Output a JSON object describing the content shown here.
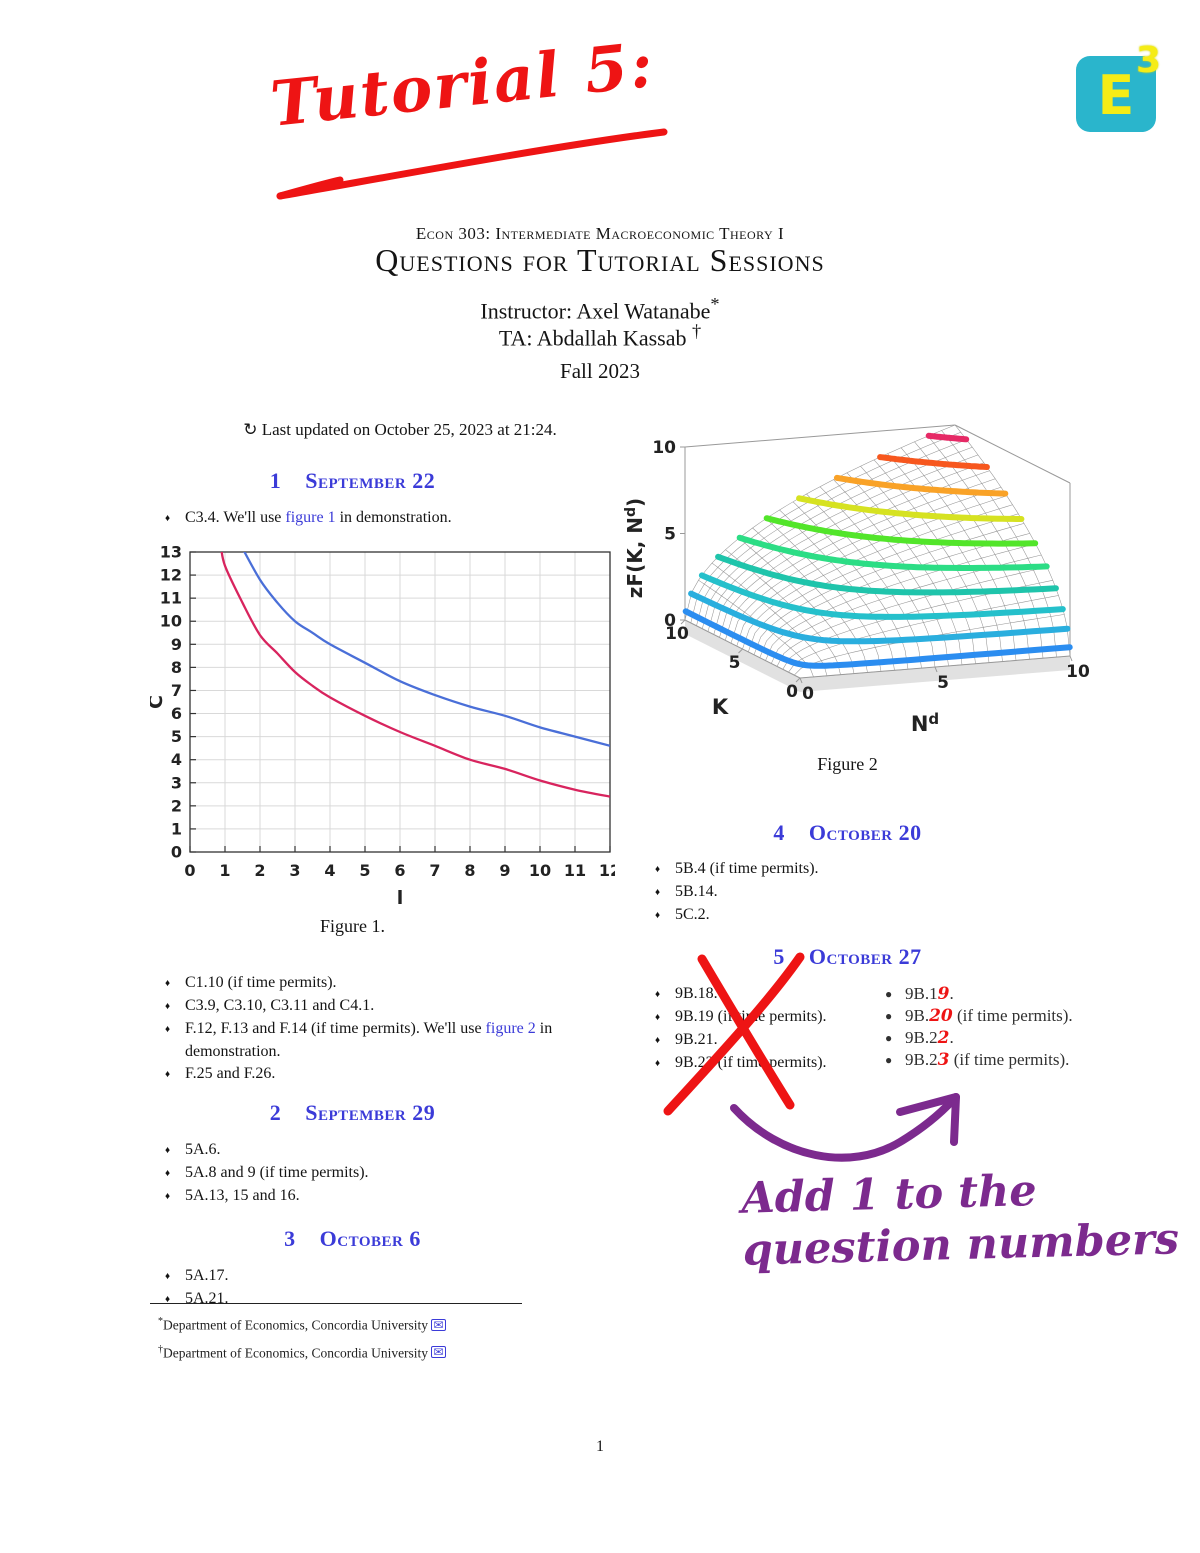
{
  "page": {
    "number": "1"
  },
  "colors": {
    "heading_blue": "#3b3bd8",
    "link_blue": "#3b3bd8",
    "annotation_red": "#ee1414",
    "annotation_purple": "#7c2a8e",
    "logo_teal": "#2ab5cc",
    "logo_yellow": "#f5ec16",
    "curve_blue": "#4a6fd8",
    "curve_red": "#d8245e"
  },
  "handwriting": {
    "tutorial_label": "Tutorial 5:",
    "note_line1": "Add 1 to the",
    "note_line2": "question numbers"
  },
  "logo": {
    "letter": "E",
    "exp": "3"
  },
  "header": {
    "course": "Econ 303: Intermediate Macroeconomic Theory I",
    "title": "Questions for Tutorial Sessions",
    "instructor": "Instructor: Axel Watanabe",
    "instructor_mark": "*",
    "ta": "TA: Abdallah Kassab",
    "ta_mark": "†",
    "term": "Fall 2023",
    "updated_icon": "↻",
    "updated": " Last updated on October 25, 2023 at 21:24."
  },
  "list_glyphs": {
    "fancy": "♦",
    "round": "●"
  },
  "sec1": {
    "num": "1",
    "title": "September 22",
    "intro_bullets": [
      [
        {
          "t": "C3.4. We'll use "
        },
        {
          "t": "figure 1",
          "s": "link"
        },
        {
          "t": " in demonstration."
        }
      ]
    ],
    "after_figure_bullets": [
      [
        {
          "t": "C1.10 (if time permits)."
        }
      ],
      [
        {
          "t": "C3.9, C3.10, C3.11 and C4.1."
        }
      ],
      [
        {
          "t": "F.12, F.13 and F.14 (if time permits). We'll use "
        },
        {
          "t": "figure 2",
          "s": "link"
        },
        {
          "t": " in demonstration."
        }
      ],
      [
        {
          "t": "F.25 and F.26."
        }
      ]
    ]
  },
  "sec2": {
    "num": "2",
    "title": "September 29",
    "bullets": [
      [
        {
          "t": "5A.6."
        }
      ],
      [
        {
          "t": "5A.8 and 9 (if time permits)."
        }
      ],
      [
        {
          "t": "5A.13, 15 and 16."
        }
      ]
    ]
  },
  "sec3": {
    "num": "3",
    "title": "October 6",
    "bullets": [
      [
        {
          "t": "5A.17."
        }
      ],
      [
        {
          "t": "5A.21."
        }
      ]
    ]
  },
  "sec4": {
    "num": "4",
    "title": "October 20",
    "bullets": [
      [
        {
          "t": "5B.4 (if time permits)."
        }
      ],
      [
        {
          "t": "5B.14."
        }
      ],
      [
        {
          "t": "5C.2."
        }
      ]
    ]
  },
  "sec5": {
    "num": "5",
    "title": "October 27",
    "left_bullets": [
      [
        {
          "t": "9B.18."
        }
      ],
      [
        {
          "t": "9B.19 (if time permits)."
        }
      ],
      [
        {
          "t": "9B.21."
        }
      ],
      [
        {
          "t": "9B.22 (if time permits)."
        }
      ]
    ],
    "right_bullets": [
      [
        {
          "t": "9B.1"
        },
        {
          "t": "9",
          "s": "red"
        },
        {
          "t": "."
        }
      ],
      [
        {
          "t": "9B."
        },
        {
          "t": "20",
          "s": "red"
        },
        {
          "t": " (if time permits)."
        }
      ],
      [
        {
          "t": "9B.2"
        },
        {
          "t": "2",
          "s": "red"
        },
        {
          "t": "."
        }
      ],
      [
        {
          "t": "9B.2"
        },
        {
          "t": "3",
          "s": "red"
        },
        {
          "t": " (if time permits)."
        }
      ]
    ]
  },
  "footnotes": {
    "items": [
      {
        "mark": "*",
        "text": "Department of Economics, Concordia University ",
        "icon": "✉"
      },
      {
        "mark": "†",
        "text": "Department of Economics, Concordia University ",
        "icon": "✉"
      }
    ]
  },
  "chart_data": [
    {
      "id": "figure-1",
      "type": "line",
      "caption": "Figure 1.",
      "xlabel": "l",
      "ylabel": "C",
      "xlim": [
        0,
        12
      ],
      "ylim": [
        0,
        13
      ],
      "xticks": [
        0,
        1,
        2,
        3,
        4,
        5,
        6,
        7,
        8,
        9,
        10,
        11,
        12
      ],
      "yticks": [
        0,
        1,
        2,
        3,
        4,
        5,
        6,
        7,
        8,
        9,
        10,
        11,
        12,
        13
      ],
      "grid": true,
      "series": [
        {
          "name": "upper-indifference-curve",
          "color": "#4a6fd8",
          "points": [
            [
              1.45,
              13.3
            ],
            [
              2,
              11.8
            ],
            [
              2.5,
              10.8
            ],
            [
              3,
              10.0
            ],
            [
              3.5,
              9.5
            ],
            [
              4,
              9.0
            ],
            [
              5,
              8.2
            ],
            [
              6,
              7.4
            ],
            [
              7,
              6.8
            ],
            [
              8,
              6.3
            ],
            [
              9,
              5.9
            ],
            [
              10,
              5.4
            ],
            [
              11,
              5.0
            ],
            [
              12,
              4.6
            ]
          ]
        },
        {
          "name": "lower-indifference-curve",
          "color": "#d8245e",
          "points": [
            [
              0.88,
              13.3
            ],
            [
              1,
              12.4
            ],
            [
              1.5,
              10.8
            ],
            [
              2,
              9.4
            ],
            [
              2.5,
              8.6
            ],
            [
              3,
              7.8
            ],
            [
              3.5,
              7.2
            ],
            [
              4,
              6.7
            ],
            [
              5,
              5.9
            ],
            [
              6,
              5.2
            ],
            [
              7,
              4.6
            ],
            [
              8,
              4.0
            ],
            [
              9,
              3.6
            ],
            [
              10,
              3.1
            ],
            [
              11,
              2.7
            ],
            [
              12,
              2.4
            ]
          ]
        }
      ]
    },
    {
      "id": "figure-2",
      "type": "surface",
      "caption": "Figure 2",
      "zlabel": "zF(K, N^d)",
      "xlabel": "K",
      "ylabel": "N^d",
      "K_range": [
        0,
        10
      ],
      "N_range": [
        0,
        10
      ],
      "z_range": [
        0,
        10
      ],
      "K_ticks": [
        0,
        5,
        10
      ],
      "N_ticks": [
        0,
        5,
        10
      ],
      "z_ticks": [
        0,
        5,
        10
      ],
      "surface_function": "z = 10*sqrt((K/10)*(N/10))",
      "mesh_step": 0.5,
      "contours": [
        {
          "z": 0.5,
          "color": "#2b8df0"
        },
        {
          "z": 1.5,
          "color": "#2aaede"
        },
        {
          "z": 2.5,
          "color": "#25c0cb"
        },
        {
          "z": 3.5,
          "color": "#1fc4ab"
        },
        {
          "z": 4.5,
          "color": "#2cdd85"
        },
        {
          "z": 5.5,
          "color": "#52e52a"
        },
        {
          "z": 6.5,
          "color": "#d6e221"
        },
        {
          "z": 7.5,
          "color": "#f9a227"
        },
        {
          "z": 8.5,
          "color": "#f7571e"
        },
        {
          "z": 9.5,
          "color": "#e62a66"
        }
      ]
    }
  ]
}
